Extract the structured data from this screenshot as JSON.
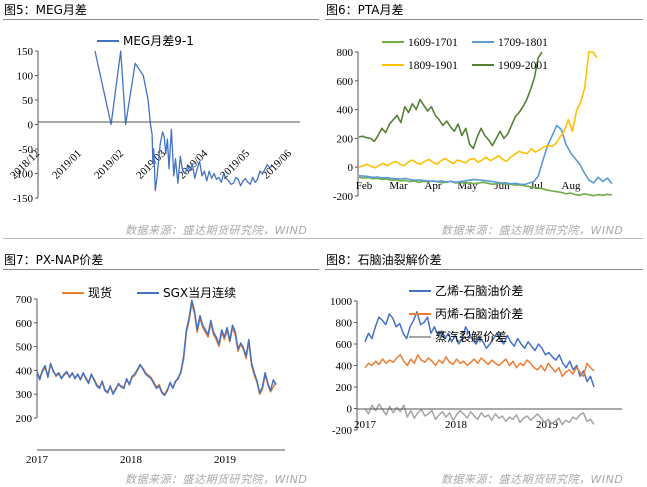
{
  "panels": [
    {
      "label": "图5：MEG月差"
    },
    {
      "label": "图6：PTA月差"
    },
    {
      "label": "图7：PX-NAP价差"
    },
    {
      "label": "图8：石脑油裂解价差"
    }
  ],
  "source_note": "数据来源：盛达期货研究院，WIND",
  "chart_data": [
    {
      "type": "line",
      "title": "",
      "ylim": [
        -150,
        150
      ],
      "yticks": [
        "150",
        "100",
        "50",
        "0",
        "-50",
        "-100",
        "-150"
      ],
      "xticks": [
        "2018/12",
        "2019/01",
        "2019/02",
        "2019/03",
        "2019/04",
        "2019/05",
        "2019/06"
      ],
      "legend_position": "top",
      "series": [
        {
          "name": "MEG月差9-1",
          "color": "#4472c4",
          "x": [
            0,
            1,
            1.6,
            1.9,
            2.5,
            3.0,
            3.3,
            3.45,
            3.55,
            3.6,
            3.65,
            3.7,
            3.75,
            3.85,
            4.05,
            4.2,
            4.3,
            4.4,
            4.5,
            4.6,
            4.75,
            4.9,
            5.0,
            5.15,
            5.3,
            5.45,
            5.6,
            5.75,
            5.9,
            6.05,
            6.2,
            6.35,
            6.5,
            6.65,
            6.8,
            6.95,
            7.1,
            7.25,
            7.4,
            7.55,
            7.7,
            7.85,
            8.0,
            8.15,
            8.3,
            8.45,
            8.6,
            8.75,
            8.9,
            9.05,
            9.2,
            9.35,
            9.5,
            9.65,
            9.8,
            9.95,
            10.1,
            10.25,
            10.4,
            10.55,
            10.7,
            10.85,
            11.0
          ],
          "values": [
            150,
            0,
            150,
            0,
            125,
            100,
            50,
            0,
            -20,
            -80,
            -50,
            -90,
            -135,
            -110,
            -40,
            -15,
            -25,
            -60,
            -30,
            -90,
            -10,
            -105,
            -70,
            -120,
            -65,
            -95,
            -100,
            -85,
            -95,
            -80,
            -110,
            -90,
            -75,
            -105,
            -95,
            -115,
            -95,
            -110,
            -100,
            -112,
            -108,
            -118,
            -100,
            -110,
            -115,
            -122,
            -120,
            -108,
            -112,
            -125,
            -115,
            -110,
            -118,
            -122,
            -108,
            -118,
            -112,
            -95,
            -100,
            -92,
            -82,
            -88,
            -85
          ]
        }
      ]
    },
    {
      "type": "line",
      "title": "",
      "ylim": [
        -200,
        800
      ],
      "yticks": [
        "800",
        "600",
        "400",
        "200",
        "0",
        "-200"
      ],
      "xticks": [
        "Feb",
        "Mar",
        "Apr",
        "May",
        "Jun",
        "Jul",
        "Aug"
      ],
      "legend_position": "top",
      "series": [
        {
          "name": "1609-1701",
          "color": "#70ad47",
          "values": [
            -70,
            -75,
            -72,
            -80,
            -78,
            -85,
            -82,
            -90,
            -88,
            -95,
            -92,
            -100,
            -95,
            -105,
            -98,
            -102,
            -95,
            -100,
            -108,
            -104,
            -98,
            -110,
            -105,
            -112,
            -108,
            -115,
            -110,
            -105,
            -112,
            -118,
            -115,
            -110,
            -120,
            -118,
            -125,
            -122,
            -130,
            -135,
            -140,
            -145,
            -150,
            -160,
            -165,
            -170,
            -175,
            -185,
            -180,
            -190,
            -195,
            -185,
            -192,
            -198,
            -190,
            -195,
            -188,
            -193
          ]
        },
        {
          "name": "1709-1801",
          "color": "#5b9bd5",
          "values": [
            -60,
            -62,
            -65,
            -70,
            -68,
            -75,
            -72,
            -78,
            -80,
            -82,
            -78,
            -85,
            -90,
            -88,
            -92,
            -95,
            -98,
            -100,
            -95,
            -102,
            -98,
            -105,
            -100,
            -95,
            -90,
            -85,
            -88,
            -92,
            -95,
            -100,
            -105,
            -110,
            -108,
            -115,
            -112,
            -118,
            -120,
            -110,
            -100,
            -60,
            50,
            150,
            220,
            290,
            260,
            160,
            100,
            60,
            20,
            -40,
            -90,
            -110,
            -70,
            -100,
            -75,
            -115
          ]
        },
        {
          "name": "1809-1901",
          "color": "#ffc000",
          "values": [
            0,
            10,
            20,
            5,
            -5,
            15,
            25,
            10,
            30,
            40,
            20,
            10,
            35,
            50,
            30,
            20,
            40,
            55,
            35,
            20,
            45,
            60,
            40,
            25,
            50,
            40,
            30,
            55,
            60,
            35,
            50,
            70,
            45,
            60,
            80,
            55,
            40,
            70,
            90,
            110,
            100,
            95,
            130,
            105,
            120,
            140,
            150,
            145,
            165,
            210,
            250,
            330,
            250,
            390,
            450,
            550,
            800,
            810,
            760
          ]
        },
        {
          "name": "1909-2001",
          "color": "#548235",
          "values": [
            210,
            215,
            205,
            200,
            180,
            220,
            270,
            240,
            300,
            330,
            360,
            310,
            420,
            380,
            440,
            400,
            470,
            430,
            390,
            420,
            360,
            330,
            290,
            320,
            280,
            250,
            300,
            220,
            270,
            160,
            130,
            210,
            270,
            220,
            190,
            150,
            200,
            250,
            200,
            230,
            290,
            350,
            380,
            420,
            470,
            540,
            620,
            760,
            800
          ]
        }
      ]
    },
    {
      "type": "line",
      "title": "",
      "ylim": [
        200,
        700
      ],
      "yticks": [
        "700",
        "600",
        "500",
        "400",
        "300",
        "200"
      ],
      "xticks": [
        "2017",
        "2018",
        "2019"
      ],
      "legend_position": "top",
      "series": [
        {
          "name": "现货",
          "color": "#ed7d31",
          "values": [
            390,
            370,
            395,
            410,
            380,
            425,
            400,
            375,
            385,
            370,
            380,
            390,
            375,
            385,
            370,
            380,
            365,
            385,
            370,
            350,
            380,
            365,
            340,
            330,
            350,
            320,
            310,
            330,
            305,
            325,
            340,
            335,
            330,
            360,
            345,
            370,
            380,
            400,
            420,
            410,
            390,
            380,
            370,
            350,
            330,
            340,
            310,
            300,
            320,
            345,
            330,
            350,
            370,
            390,
            450,
            560,
            610,
            680,
            640,
            560,
            620,
            580,
            560,
            540,
            600,
            550,
            530,
            500,
            560,
            530,
            570,
            520,
            580,
            550,
            480,
            510,
            490,
            450,
            520,
            420,
            380,
            350,
            300,
            320,
            380,
            340,
            310,
            330,
            350
          ]
        },
        {
          "name": "SGX当月连续",
          "color": "#4472c4",
          "values": [
            395,
            360,
            400,
            420,
            370,
            430,
            395,
            380,
            390,
            365,
            385,
            395,
            370,
            390,
            365,
            385,
            360,
            390,
            365,
            345,
            385,
            360,
            335,
            325,
            355,
            315,
            305,
            335,
            300,
            320,
            345,
            330,
            325,
            365,
            340,
            375,
            385,
            405,
            425,
            405,
            385,
            375,
            365,
            345,
            325,
            335,
            305,
            295,
            315,
            350,
            325,
            355,
            365,
            395,
            460,
            570,
            620,
            695,
            650,
            570,
            630,
            590,
            570,
            550,
            610,
            560,
            540,
            510,
            570,
            540,
            580,
            525,
            590,
            560,
            490,
            515,
            495,
            460,
            530,
            430,
            390,
            355,
            305,
            330,
            390,
            345,
            315,
            360,
            340
          ]
        }
      ]
    },
    {
      "type": "line",
      "title": "",
      "ylim": [
        -200,
        1000
      ],
      "yticks": [
        "1000",
        "800",
        "600",
        "400",
        "200",
        "0",
        "-200"
      ],
      "xticks": [
        "2017",
        "2018",
        "2019"
      ],
      "legend_position": "top",
      "series": [
        {
          "name": "乙烯-石脑油价差",
          "color": "#4472c4",
          "values": [
            620,
            700,
            650,
            760,
            850,
            820,
            780,
            880,
            840,
            760,
            790,
            700,
            650,
            760,
            820,
            900,
            780,
            800,
            850,
            700,
            760,
            680,
            720,
            650,
            700,
            620,
            680,
            600,
            650,
            760,
            700,
            640,
            600,
            660,
            620,
            560,
            600,
            650,
            700,
            640,
            600,
            680,
            620,
            580,
            650,
            600,
            560,
            620,
            580,
            540,
            600,
            560,
            500,
            520,
            480,
            450,
            500,
            420,
            380,
            440,
            360,
            400,
            300,
            350,
            250,
            300,
            200
          ]
        },
        {
          "name": "丙烯-石脑油价差",
          "color": "#ed7d31",
          "values": [
            380,
            420,
            400,
            440,
            410,
            460,
            420,
            450,
            430,
            470,
            500,
            440,
            400,
            460,
            420,
            500,
            450,
            430,
            470,
            440,
            400,
            450,
            420,
            480,
            430,
            410,
            460,
            420,
            440,
            400,
            430,
            460,
            420,
            470,
            440,
            410,
            450,
            420,
            400,
            430,
            460,
            400,
            440,
            380,
            420,
            400,
            450,
            420,
            380,
            360,
            400,
            350,
            420,
            380,
            340,
            380,
            300,
            340,
            360,
            320,
            380,
            340,
            300,
            420,
            380,
            350
          ]
        },
        {
          "name": "蒸汽裂解价差",
          "color": "#a5a5a5",
          "values": [
            0,
            -50,
            30,
            -20,
            40,
            -10,
            -60,
            20,
            -40,
            10,
            -30,
            30,
            -80,
            -20,
            -90,
            -40,
            -10,
            -70,
            -50,
            -20,
            -100,
            -60,
            -30,
            -80,
            -40,
            -110,
            -60,
            -20,
            -50,
            -90,
            -30,
            -70,
            -100,
            -40,
            -80,
            -60,
            -110,
            -50,
            -90,
            -70,
            -120,
            -80,
            -100,
            -60,
            -130,
            -90,
            -70,
            -110,
            -80,
            -50,
            -90,
            -130,
            -100,
            -140,
            -120,
            -90,
            -150,
            -110,
            -130,
            -80,
            -100,
            -60,
            -40,
            -120,
            -100,
            -150
          ]
        }
      ]
    }
  ]
}
